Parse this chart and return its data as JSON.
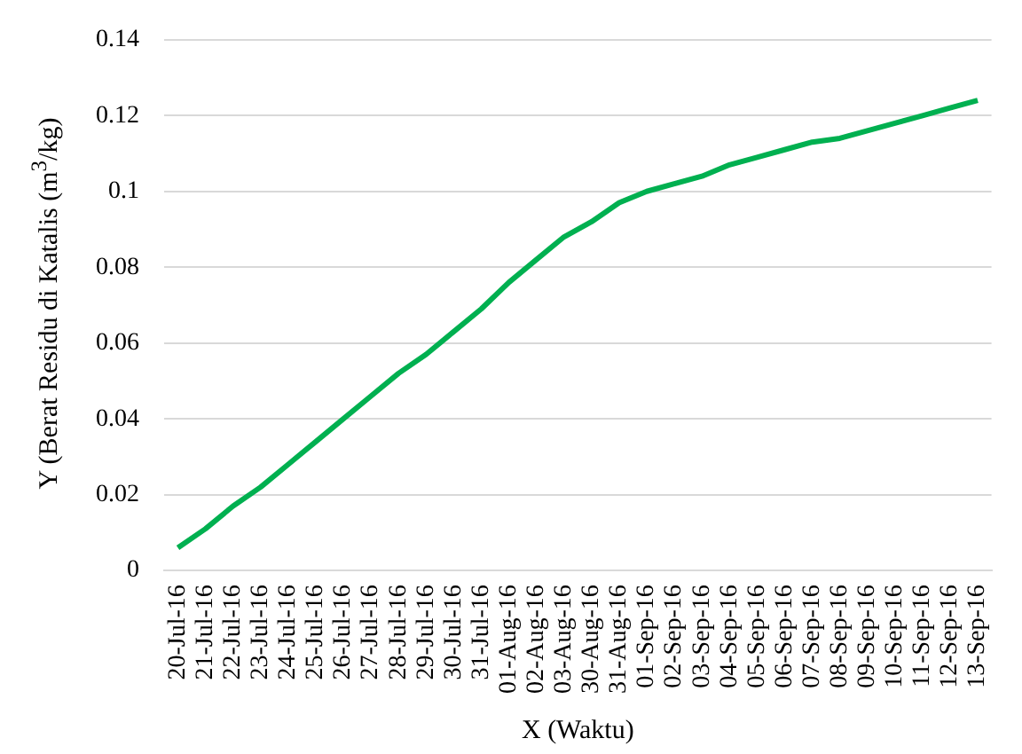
{
  "chart_data": {
    "type": "line",
    "xlabel": "X (Waktu)",
    "ylabel": "Y (Berat Residu di Katalis (m$^{3}$/kg)",
    "categories": [
      "20-Jul-16",
      "21-Jul-16",
      "22-Jul-16",
      "23-Jul-16",
      "24-Jul-16",
      "25-Jul-16",
      "26-Jul-16",
      "27-Jul-16",
      "28-Jul-16",
      "29-Jul-16",
      "30-Jul-16",
      "31-Jul-16",
      "01-Aug-16",
      "02-Aug-16",
      "03-Aug-16",
      "30-Aug-16",
      "31-Aug-16",
      "01-Sep-16",
      "02-Sep-16",
      "03-Sep-16",
      "04-Sep-16",
      "05-Sep-16",
      "06-Sep-16",
      "07-Sep-16",
      "08-Sep-16",
      "09-Sep-16",
      "10-Sep-16",
      "11-Sep-16",
      "12-Sep-16",
      "13-Sep-16"
    ],
    "series": [
      {
        "color": "#00b050",
        "values": [
          0.006,
          0.011,
          0.017,
          0.022,
          0.028,
          0.034,
          0.04,
          0.046,
          0.052,
          0.057,
          0.063,
          0.069,
          0.076,
          0.082,
          0.088,
          0.092,
          0.097,
          0.1,
          0.102,
          0.104,
          0.107,
          0.109,
          0.111,
          0.113,
          0.114,
          0.116,
          0.118,
          0.12,
          0.122,
          0.124
        ]
      }
    ],
    "ylim": [
      0,
      0.14
    ],
    "yticks": [
      0,
      0.02,
      0.04,
      0.06,
      0.08,
      {
        "value": 0.1,
        "label": "0.1"
      },
      0.12,
      0.14
    ],
    "grid": "y",
    "legend": false,
    "marker": "none",
    "line_style": "solid"
  }
}
